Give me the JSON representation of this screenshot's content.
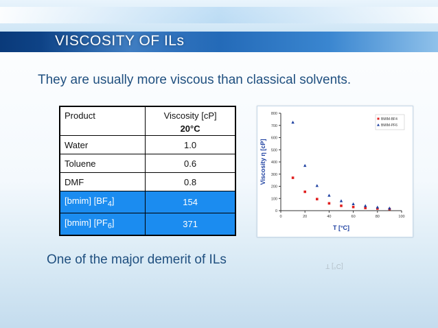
{
  "slide": {
    "title": "VISCOSITY OF ILs",
    "subtitle": "They are usually more viscous than classical solvents.",
    "footnote": "One of the major demerit of ILs"
  },
  "table": {
    "header": {
      "product": "Product",
      "viscosity": "Viscosity  [cP]",
      "temperature": "20°C"
    },
    "rows": [
      {
        "product": "Water",
        "value": "1.0",
        "highlight": false
      },
      {
        "product": "Toluene",
        "value": "0.6",
        "highlight": false
      },
      {
        "product": "DMF",
        "value": "0.8",
        "highlight": false
      },
      {
        "product_main": "[bmim] [BF",
        "product_sub": "4",
        "product_end": "]",
        "value": "154",
        "highlight": true
      },
      {
        "product_main": "[bmim] [PF",
        "product_sub": "6",
        "product_end": "]",
        "value": "371",
        "highlight": true
      }
    ],
    "highlight_color": "#1b8cf0"
  },
  "chart_data": {
    "type": "scatter",
    "title": "",
    "xlabel": "T [°C]",
    "ylabel": "Viscosity η [cP]",
    "xlim": [
      0,
      100
    ],
    "ylim": [
      0,
      800
    ],
    "xticks": [
      0,
      20,
      40,
      60,
      80,
      100
    ],
    "yticks": [
      0,
      100,
      200,
      300,
      400,
      500,
      600,
      700,
      800
    ],
    "legend_position": "top-right",
    "series": [
      {
        "name": "BMIM-BF4",
        "marker": "square",
        "color": "#e02020",
        "x": [
          10,
          20,
          30,
          40,
          50,
          60,
          70,
          80,
          90
        ],
        "y": [
          270,
          155,
          95,
          60,
          40,
          30,
          22,
          17,
          13
        ]
      },
      {
        "name": "BMIM-PF6",
        "marker": "triangle",
        "color": "#1c3fa0",
        "x": [
          10,
          20,
          30,
          40,
          50,
          60,
          70,
          80,
          90
        ],
        "y": [
          725,
          370,
          205,
          125,
          80,
          55,
          40,
          28,
          20
        ]
      }
    ]
  }
}
